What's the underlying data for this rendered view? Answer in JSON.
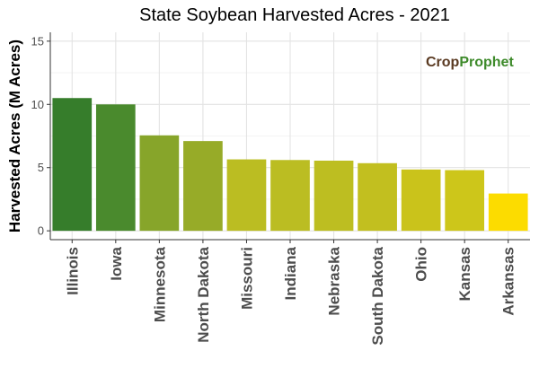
{
  "chart_data": {
    "type": "bar",
    "title": "State Soybean Harvested Acres - 2021",
    "xlabel": "",
    "ylabel": "Harvested Acres (M Acres)",
    "categories": [
      "Illinois",
      "Iowa",
      "Minnesota",
      "North Dakota",
      "Missouri",
      "Indiana",
      "Nebraska",
      "South Dakota",
      "Ohio",
      "Kansas",
      "Arkansas"
    ],
    "values": [
      10.5,
      10.0,
      7.55,
      7.1,
      5.65,
      5.6,
      5.55,
      5.35,
      4.85,
      4.8,
      2.95
    ],
    "bar_colors": [
      "#367d2b",
      "#4a8a2d",
      "#87a52a",
      "#97ab28",
      "#bbbd22",
      "#bbbd22",
      "#bdbe21",
      "#c2bf1f",
      "#cac31b",
      "#cdc61a",
      "#fcdc00"
    ],
    "ylim": [
      -0.7,
      15.7
    ],
    "yticks": [
      0,
      5,
      10,
      15
    ],
    "grid": true,
    "legend": "none"
  },
  "watermark": {
    "text_a": "Crop",
    "text_b": "Prophet",
    "color_a": "#5a3a22",
    "color_b": "#3d8a2a"
  }
}
